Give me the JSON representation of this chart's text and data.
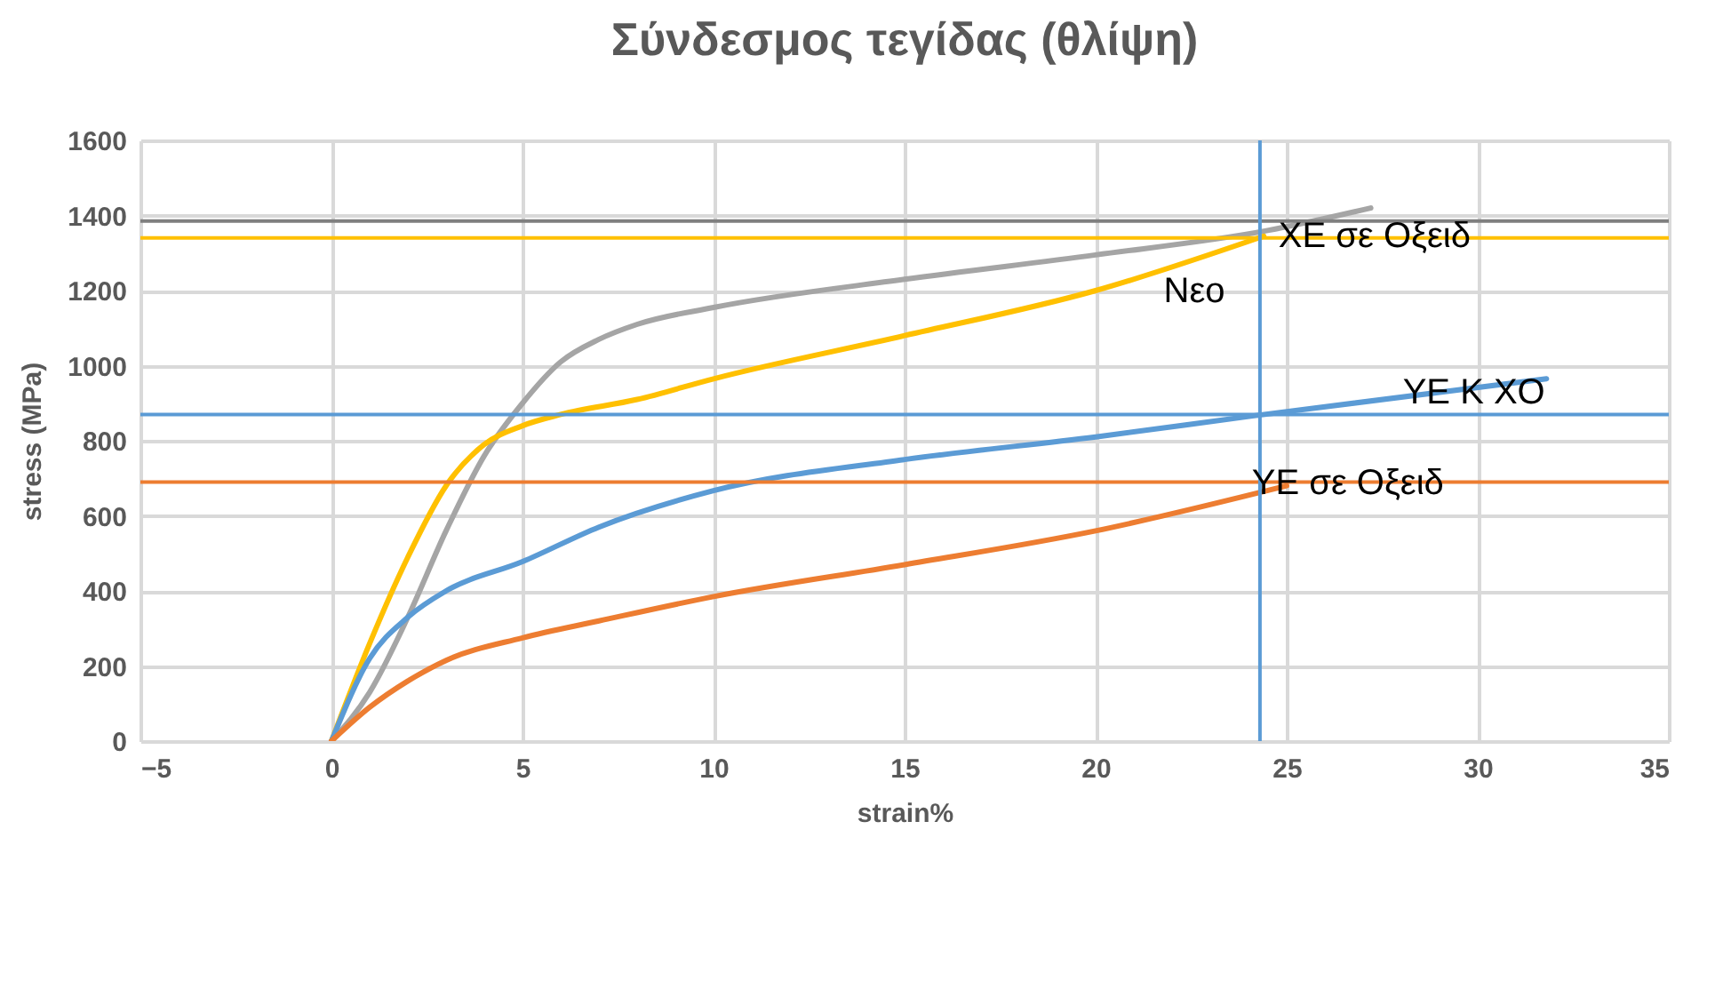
{
  "chart_data": {
    "type": "line",
    "title": "Σύνδεσμος τεγίδας (θλίψη)",
    "xlabel": "strain%",
    "ylabel": "stress (MPa)",
    "xlim": [
      -5,
      35
    ],
    "xticks": [
      -5,
      0,
      5,
      10,
      15,
      20,
      25,
      30,
      35
    ],
    "ylim": [
      0,
      1600
    ],
    "yticks": [
      0,
      200,
      400,
      600,
      800,
      1000,
      1200,
      1400,
      1600
    ],
    "grid": true,
    "legend": false,
    "series": [
      {
        "color": "#a5a5a5",
        "x": [
          0,
          1,
          2,
          3,
          4,
          5,
          6,
          7,
          8,
          10,
          15,
          20,
          24.5,
          27.2
        ],
        "values": [
          0,
          130,
          330,
          560,
          760,
          900,
          1010,
          1070,
          1110,
          1155,
          1230,
          1295,
          1360,
          1420
        ]
      },
      {
        "color": "#ffc000",
        "x": [
          0,
          1,
          2,
          3,
          4,
          5,
          6,
          8,
          10,
          15,
          20,
          24.4
        ],
        "values": [
          0,
          260,
          490,
          680,
          790,
          840,
          870,
          910,
          965,
          1080,
          1200,
          1345
        ]
      },
      {
        "color": "#5b9bd5",
        "x": [
          0,
          1,
          2,
          3,
          5,
          7,
          10,
          15,
          20,
          24.1,
          31.8
        ],
        "values": [
          0,
          220,
          330,
          400,
          478,
          570,
          667,
          750,
          810,
          866,
          965
        ]
      },
      {
        "color": "#ed7d31",
        "x": [
          0,
          1,
          2,
          3,
          5,
          7,
          10,
          15,
          20,
          25
        ],
        "values": [
          0,
          90,
          160,
          215,
          275,
          320,
          385,
          470,
          560,
          680
        ]
      }
    ],
    "ref_lines": [
      {
        "axis": "y",
        "value": 1385,
        "color": "#7f7f7f"
      },
      {
        "axis": "y",
        "value": 1340,
        "color": "#ffc000"
      },
      {
        "axis": "y",
        "value": 870,
        "color": "#5b9bd5"
      },
      {
        "axis": "y",
        "value": 690,
        "color": "#ed7d31"
      },
      {
        "axis": "x",
        "value": 24.3,
        "color": "#5b9bd5"
      }
    ],
    "annotations": [
      {
        "text": "ΧΕ σε Οξειδ",
        "x": 27.3,
        "y": 1345
      },
      "Νεο",
      {
        "text": "ΥΕ Κ ΧΟ",
        "x": 29.9,
        "y": 927
      },
      {
        "text": "ΥΕ σε Οξειδ",
        "x": 26.6,
        "y": 686
      }
    ]
  }
}
